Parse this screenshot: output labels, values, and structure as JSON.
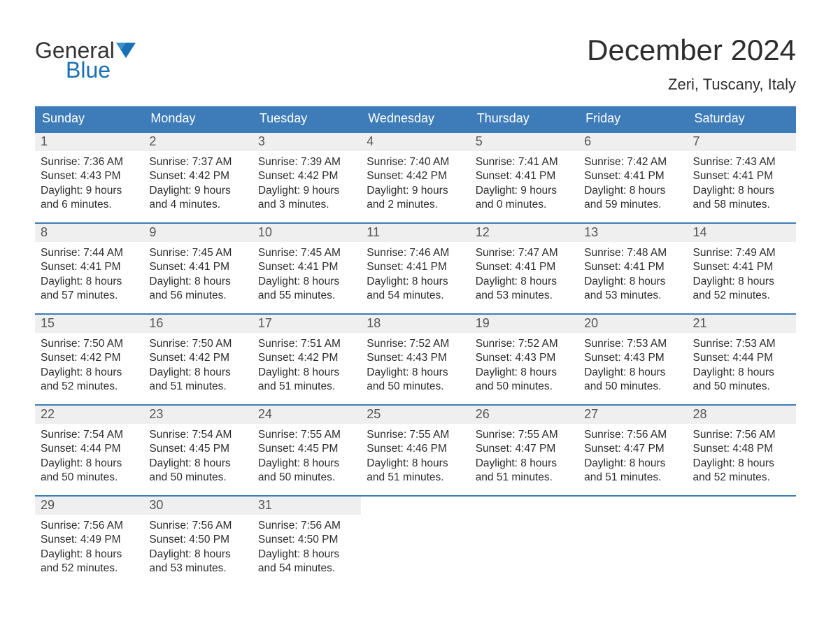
{
  "logo": {
    "line1": "General",
    "line2": "Blue",
    "text1_color": "#333333",
    "text2_color": "#1a6fb5",
    "icon_color": "#1a6fb5"
  },
  "title": "December 2024",
  "location": "Zeri, Tuscany, Italy",
  "colors": {
    "header_bg": "#3d7cb8",
    "header_text": "#ffffff",
    "week_border": "#3d7cb8",
    "daynum_bg": "#efefef",
    "daynum_text": "#555555",
    "body_text": "#2d2d2d",
    "page_bg": "#ffffff"
  },
  "daysOfWeek": [
    "Sunday",
    "Monday",
    "Tuesday",
    "Wednesday",
    "Thursday",
    "Friday",
    "Saturday"
  ],
  "weeks": [
    [
      {
        "n": "1",
        "sunrise": "Sunrise: 7:36 AM",
        "sunset": "Sunset: 4:43 PM",
        "dl1": "Daylight: 9 hours",
        "dl2": "and 6 minutes."
      },
      {
        "n": "2",
        "sunrise": "Sunrise: 7:37 AM",
        "sunset": "Sunset: 4:42 PM",
        "dl1": "Daylight: 9 hours",
        "dl2": "and 4 minutes."
      },
      {
        "n": "3",
        "sunrise": "Sunrise: 7:39 AM",
        "sunset": "Sunset: 4:42 PM",
        "dl1": "Daylight: 9 hours",
        "dl2": "and 3 minutes."
      },
      {
        "n": "4",
        "sunrise": "Sunrise: 7:40 AM",
        "sunset": "Sunset: 4:42 PM",
        "dl1": "Daylight: 9 hours",
        "dl2": "and 2 minutes."
      },
      {
        "n": "5",
        "sunrise": "Sunrise: 7:41 AM",
        "sunset": "Sunset: 4:41 PM",
        "dl1": "Daylight: 9 hours",
        "dl2": "and 0 minutes."
      },
      {
        "n": "6",
        "sunrise": "Sunrise: 7:42 AM",
        "sunset": "Sunset: 4:41 PM",
        "dl1": "Daylight: 8 hours",
        "dl2": "and 59 minutes."
      },
      {
        "n": "7",
        "sunrise": "Sunrise: 7:43 AM",
        "sunset": "Sunset: 4:41 PM",
        "dl1": "Daylight: 8 hours",
        "dl2": "and 58 minutes."
      }
    ],
    [
      {
        "n": "8",
        "sunrise": "Sunrise: 7:44 AM",
        "sunset": "Sunset: 4:41 PM",
        "dl1": "Daylight: 8 hours",
        "dl2": "and 57 minutes."
      },
      {
        "n": "9",
        "sunrise": "Sunrise: 7:45 AM",
        "sunset": "Sunset: 4:41 PM",
        "dl1": "Daylight: 8 hours",
        "dl2": "and 56 minutes."
      },
      {
        "n": "10",
        "sunrise": "Sunrise: 7:45 AM",
        "sunset": "Sunset: 4:41 PM",
        "dl1": "Daylight: 8 hours",
        "dl2": "and 55 minutes."
      },
      {
        "n": "11",
        "sunrise": "Sunrise: 7:46 AM",
        "sunset": "Sunset: 4:41 PM",
        "dl1": "Daylight: 8 hours",
        "dl2": "and 54 minutes."
      },
      {
        "n": "12",
        "sunrise": "Sunrise: 7:47 AM",
        "sunset": "Sunset: 4:41 PM",
        "dl1": "Daylight: 8 hours",
        "dl2": "and 53 minutes."
      },
      {
        "n": "13",
        "sunrise": "Sunrise: 7:48 AM",
        "sunset": "Sunset: 4:41 PM",
        "dl1": "Daylight: 8 hours",
        "dl2": "and 53 minutes."
      },
      {
        "n": "14",
        "sunrise": "Sunrise: 7:49 AM",
        "sunset": "Sunset: 4:41 PM",
        "dl1": "Daylight: 8 hours",
        "dl2": "and 52 minutes."
      }
    ],
    [
      {
        "n": "15",
        "sunrise": "Sunrise: 7:50 AM",
        "sunset": "Sunset: 4:42 PM",
        "dl1": "Daylight: 8 hours",
        "dl2": "and 52 minutes."
      },
      {
        "n": "16",
        "sunrise": "Sunrise: 7:50 AM",
        "sunset": "Sunset: 4:42 PM",
        "dl1": "Daylight: 8 hours",
        "dl2": "and 51 minutes."
      },
      {
        "n": "17",
        "sunrise": "Sunrise: 7:51 AM",
        "sunset": "Sunset: 4:42 PM",
        "dl1": "Daylight: 8 hours",
        "dl2": "and 51 minutes."
      },
      {
        "n": "18",
        "sunrise": "Sunrise: 7:52 AM",
        "sunset": "Sunset: 4:43 PM",
        "dl1": "Daylight: 8 hours",
        "dl2": "and 50 minutes."
      },
      {
        "n": "19",
        "sunrise": "Sunrise: 7:52 AM",
        "sunset": "Sunset: 4:43 PM",
        "dl1": "Daylight: 8 hours",
        "dl2": "and 50 minutes."
      },
      {
        "n": "20",
        "sunrise": "Sunrise: 7:53 AM",
        "sunset": "Sunset: 4:43 PM",
        "dl1": "Daylight: 8 hours",
        "dl2": "and 50 minutes."
      },
      {
        "n": "21",
        "sunrise": "Sunrise: 7:53 AM",
        "sunset": "Sunset: 4:44 PM",
        "dl1": "Daylight: 8 hours",
        "dl2": "and 50 minutes."
      }
    ],
    [
      {
        "n": "22",
        "sunrise": "Sunrise: 7:54 AM",
        "sunset": "Sunset: 4:44 PM",
        "dl1": "Daylight: 8 hours",
        "dl2": "and 50 minutes."
      },
      {
        "n": "23",
        "sunrise": "Sunrise: 7:54 AM",
        "sunset": "Sunset: 4:45 PM",
        "dl1": "Daylight: 8 hours",
        "dl2": "and 50 minutes."
      },
      {
        "n": "24",
        "sunrise": "Sunrise: 7:55 AM",
        "sunset": "Sunset: 4:45 PM",
        "dl1": "Daylight: 8 hours",
        "dl2": "and 50 minutes."
      },
      {
        "n": "25",
        "sunrise": "Sunrise: 7:55 AM",
        "sunset": "Sunset: 4:46 PM",
        "dl1": "Daylight: 8 hours",
        "dl2": "and 51 minutes."
      },
      {
        "n": "26",
        "sunrise": "Sunrise: 7:55 AM",
        "sunset": "Sunset: 4:47 PM",
        "dl1": "Daylight: 8 hours",
        "dl2": "and 51 minutes."
      },
      {
        "n": "27",
        "sunrise": "Sunrise: 7:56 AM",
        "sunset": "Sunset: 4:47 PM",
        "dl1": "Daylight: 8 hours",
        "dl2": "and 51 minutes."
      },
      {
        "n": "28",
        "sunrise": "Sunrise: 7:56 AM",
        "sunset": "Sunset: 4:48 PM",
        "dl1": "Daylight: 8 hours",
        "dl2": "and 52 minutes."
      }
    ],
    [
      {
        "n": "29",
        "sunrise": "Sunrise: 7:56 AM",
        "sunset": "Sunset: 4:49 PM",
        "dl1": "Daylight: 8 hours",
        "dl2": "and 52 minutes."
      },
      {
        "n": "30",
        "sunrise": "Sunrise: 7:56 AM",
        "sunset": "Sunset: 4:50 PM",
        "dl1": "Daylight: 8 hours",
        "dl2": "and 53 minutes."
      },
      {
        "n": "31",
        "sunrise": "Sunrise: 7:56 AM",
        "sunset": "Sunset: 4:50 PM",
        "dl1": "Daylight: 8 hours",
        "dl2": "and 54 minutes."
      },
      {
        "empty": true
      },
      {
        "empty": true
      },
      {
        "empty": true
      },
      {
        "empty": true
      }
    ]
  ]
}
